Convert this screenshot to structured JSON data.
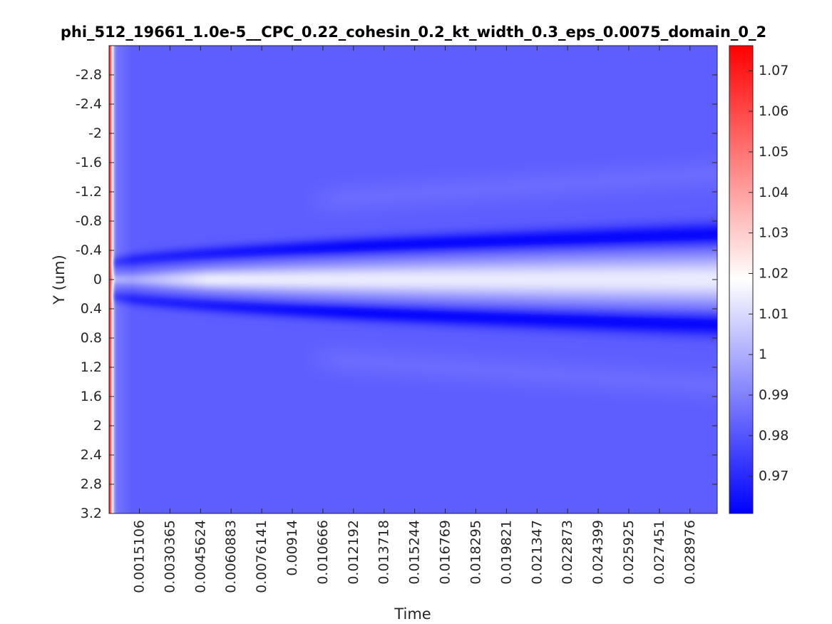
{
  "chart_data": {
    "type": "heatmap",
    "title": "phi_512_19661_1.0e-5__CPC_0.22_cohesin_0.2_kt_width_0.3_eps_0.0075_domain_0_2",
    "xlabel": "Time",
    "ylabel": "Y (um)",
    "xlim": [
      0,
      0.030335
    ],
    "ylim": [
      -3.2,
      3.2
    ],
    "y_reversed": true,
    "x_ticks": [
      0.0015106,
      0.0030365,
      0.0045624,
      0.0060883,
      0.0076141,
      0.00914,
      0.010666,
      0.012192,
      0.013718,
      0.015244,
      0.016769,
      0.018295,
      0.019821,
      0.021347,
      0.022873,
      0.024399,
      0.025925,
      0.027451,
      0.028976
    ],
    "x_tick_labels": [
      "0.0015106",
      "0.0030365",
      "0.0045624",
      "0.0060883",
      "0.0076141",
      "0.00914",
      "0.010666",
      "0.012192",
      "0.013718",
      "0.015244",
      "0.016769",
      "0.018295",
      "0.019821",
      "0.021347",
      "0.022873",
      "0.024399",
      "0.025925",
      "0.027451",
      "0.028976"
    ],
    "y_ticks": [
      -2.8,
      -2.4,
      -2,
      -1.6,
      -1.2,
      -0.8,
      -0.4,
      0,
      0.4,
      0.8,
      1.2,
      1.6,
      2,
      2.4,
      2.8,
      3.2
    ],
    "y_tick_labels": [
      "-2.8",
      "-2.4",
      "-2",
      "-1.6",
      "-1.2",
      "-0.8",
      "-0.4",
      "0",
      "0.4",
      "0.8",
      "1.2",
      "1.6",
      "2",
      "2.4",
      "2.8",
      "3.2"
    ],
    "colorbar": {
      "range": [
        0.9608,
        1.0762
      ],
      "ticks": [
        0.97,
        0.98,
        0.99,
        1,
        1.01,
        1.02,
        1.03,
        1.04,
        1.05,
        1.06,
        1.07
      ],
      "tick_labels": [
        "0.97",
        "0.98",
        "0.99",
        "1",
        "1.01",
        "1.02",
        "1.03",
        "1.04",
        "1.05",
        "1.06",
        "1.07"
      ],
      "colormap": [
        "#0000ff",
        "#ffffff",
        "#ff0000"
      ],
      "center": 1.0185
    },
    "field": {
      "background": 0.982,
      "initial_value": 1.07,
      "initial_width": 0.00018,
      "valley_value": 0.9625,
      "center_value": 1.014,
      "valley_position_at_tmax": 0.62,
      "secondary_band_value": 0.985
    }
  }
}
